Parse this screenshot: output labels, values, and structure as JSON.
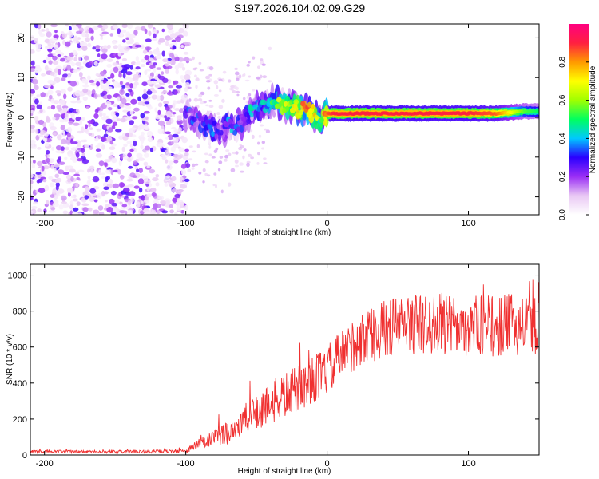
{
  "title": "S197.2026.104.02.09.G29",
  "chart_data": [
    {
      "type": "heatmap",
      "title": "S197.2026.104.02.09.G29",
      "xlabel": "Height of straight line (km)",
      "ylabel": "Frequency (Hz)",
      "xlim": [
        -210,
        150
      ],
      "ylim": [
        -24.5,
        23.5
      ],
      "xticks": [
        -200,
        -100,
        0,
        100
      ],
      "yticks": [
        -20,
        -10,
        0,
        10,
        20
      ],
      "colorbar": {
        "label": "Normalized spectral amplitude",
        "range": [
          0,
          1
        ],
        "ticks": [
          0.0,
          0.2,
          0.4,
          0.6,
          0.8
        ],
        "colors": [
          "#ffffff",
          "#e9c8f4",
          "#9a2ef5",
          "#2a00ff",
          "#00c8ff",
          "#00ff60",
          "#a0ff00",
          "#ffff00",
          "#ff9900",
          "#ff2040",
          "#ff0080"
        ]
      },
      "regions": [
        {
          "x_range": [
            -210,
            -100
          ],
          "description_level": "noise",
          "freq_spread": [
            -24.5,
            23.5
          ]
        },
        {
          "x_range": [
            -100,
            0
          ],
          "description_level": "transition"
        },
        {
          "x_range": [
            0,
            150
          ],
          "description_level": "signal"
        }
      ],
      "centerline": {
        "x": [
          -100,
          -95,
          -90,
          -85,
          -80,
          -75,
          -70,
          -65,
          -60,
          -55,
          -50,
          -45,
          -40,
          -35,
          -30,
          -25,
          -20,
          -15,
          -10,
          -5,
          0,
          5,
          10,
          20,
          40,
          60,
          80,
          100,
          120,
          140,
          150
        ],
        "y": [
          1,
          0,
          -1,
          -2,
          -3,
          -4,
          -2,
          -3,
          -1,
          1,
          2,
          3,
          4,
          4,
          3,
          3,
          2,
          2,
          1,
          -1,
          1,
          1,
          1,
          1,
          1,
          1,
          1,
          1,
          1,
          1.5,
          1.5
        ],
        "amplitude": [
          0.2,
          0.25,
          0.2,
          0.3,
          0.25,
          0.2,
          0.3,
          0.25,
          0.3,
          0.35,
          0.3,
          0.35,
          0.4,
          0.55,
          0.6,
          0.65,
          0.7,
          0.75,
          0.8,
          0.5,
          0.85,
          0.9,
          0.9,
          0.9,
          0.9,
          0.9,
          0.9,
          0.9,
          0.85,
          0.55,
          0.5
        ]
      }
    },
    {
      "type": "line",
      "xlabel": "Height of straight line (km)",
      "ylabel": "SNR (10 * v/v)",
      "xlim": [
        -210,
        150
      ],
      "ylim": [
        0,
        1060
      ],
      "xticks": [
        -200,
        -100,
        0,
        100
      ],
      "yticks": [
        0,
        200,
        400,
        600,
        800,
        1000
      ],
      "series": [
        {
          "name": "SNR",
          "color": "#f03030",
          "envelope_x": [
            -210,
            -150,
            -100,
            -90,
            -80,
            -70,
            -60,
            -50,
            -40,
            -30,
            -20,
            -10,
            0,
            10,
            20,
            30,
            40,
            50,
            60,
            70,
            80,
            90,
            100,
            110,
            120,
            130,
            140,
            150
          ],
          "envelope_y": [
            20,
            18,
            22,
            60,
            90,
            130,
            180,
            240,
            290,
            330,
            370,
            420,
            470,
            550,
            620,
            660,
            700,
            720,
            730,
            720,
            730,
            710,
            720,
            720,
            710,
            730,
            720,
            730
          ],
          "envelope_spread": [
            8,
            8,
            10,
            40,
            50,
            70,
            90,
            110,
            120,
            130,
            130,
            130,
            140,
            140,
            150,
            150,
            160,
            170,
            170,
            170,
            170,
            170,
            170,
            170,
            170,
            170,
            170,
            170
          ]
        }
      ]
    }
  ]
}
